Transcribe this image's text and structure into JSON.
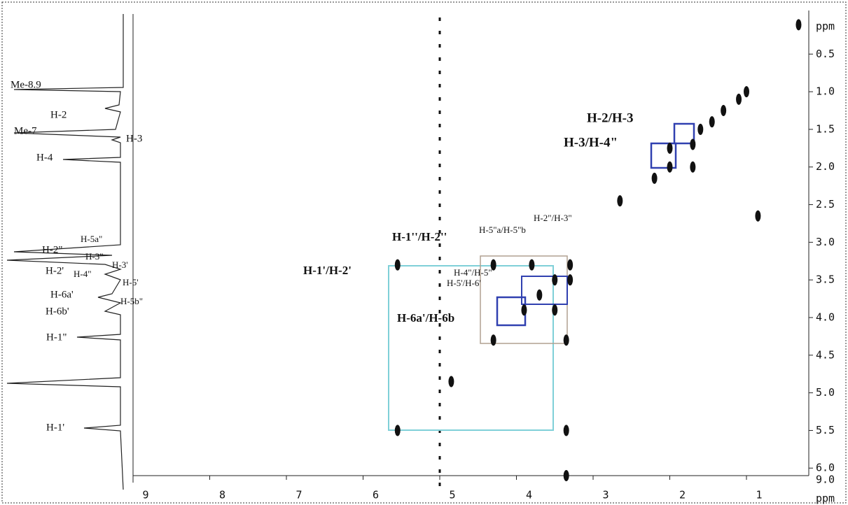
{
  "chart_data": {
    "type": "scatter",
    "x_label": "ppm",
    "y_label": "ppm",
    "corner_label": "9.0",
    "xlim": [
      9,
      0
    ],
    "ylim": [
      0,
      6.1
    ],
    "xticks": [
      9,
      8,
      7,
      6,
      5,
      4,
      3,
      2,
      1
    ],
    "yticks": [
      0.5,
      {
        "value": 1,
        "label": "1.0"
      },
      1.5,
      {
        "value": 2,
        "label": "2.0"
      },
      2.5,
      {
        "value": 3,
        "label": "3.0"
      },
      3.5,
      {
        "value": 4,
        "label": "4.0"
      },
      4.5,
      {
        "value": 5,
        "label": "5.0"
      },
      5.5,
      {
        "value": 6,
        "label": "6.0"
      }
    ],
    "x": [
      0.32,
      1.0,
      1.1,
      1.3,
      1.45,
      1.6,
      1.7,
      2.0,
      2.0,
      2.2,
      1.7,
      2.65,
      0.85,
      3.3,
      3.3,
      3.5,
      3.7,
      3.9,
      4.3,
      4.3,
      3.35,
      5.55,
      5.55,
      3.35,
      4.85,
      3.35,
      3.5,
      3.8
    ],
    "values": [
      0.11,
      1.0,
      1.1,
      1.25,
      1.4,
      1.5,
      1.7,
      1.75,
      2.0,
      2.15,
      2.0,
      2.45,
      2.65,
      3.3,
      3.5,
      3.5,
      3.7,
      3.9,
      4.3,
      3.3,
      4.3,
      3.3,
      5.5,
      5.5,
      4.85,
      6.1,
      3.9,
      3.3
    ],
    "color": "#111111",
    "projection_labels": [
      "Me-8.9",
      "H-2",
      "Me-7",
      "H-3",
      "H-4",
      "H-5a\"",
      "H-2\"",
      "H-3\"",
      "H-3'",
      "H-2'",
      "H-4\"",
      "H-5'",
      "H-6a'",
      "H-5b\"",
      "H-6b'",
      "H-1\"",
      "H-1'"
    ],
    "annotations": [
      "H-2/H-3",
      "H-3/H-4\"",
      "H-1''/H-2''",
      "H-5\"a/H-5\"b",
      "H-2\"/H-3\"",
      "H-1'/H-2'",
      "H-4\"/H-5\"",
      "H-5'/H-6'",
      "H-6a'/H-6b"
    ]
  }
}
